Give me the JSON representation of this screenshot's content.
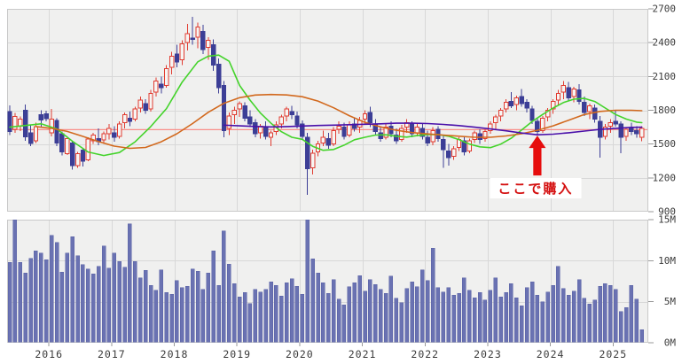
{
  "chart_data": {
    "type": "candlestick",
    "title": "",
    "description": "Monthly stock candlestick chart with volume panel, three moving averages, horizontal purchase-price line and a buy annotation",
    "price_axis": {
      "min": 900,
      "max": 2700,
      "tick_values": [
        2700,
        2400,
        2100,
        1800,
        1500,
        1200,
        900
      ],
      "tick_labels": [
        "2700",
        "2400",
        "2100",
        "1800",
        "1500",
        "1200",
        "900"
      ],
      "position": "right",
      "grid": true
    },
    "volume_axis": {
      "min": 0,
      "max": 15,
      "tick_values": [
        15,
        10,
        5,
        0
      ],
      "tick_labels": [
        "15M",
        "10M",
        "5M",
        "0M"
      ],
      "position": "right",
      "grid": true
    },
    "x_axis": {
      "year_labels": [
        "2016",
        "2017",
        "2018",
        "2019",
        "2020",
        "2021",
        "2022",
        "2023",
        "2024",
        "2025"
      ],
      "first_year_start_index": 7,
      "candles_per_year": 12,
      "grid": true
    },
    "candles_ohlc": [
      [
        1790,
        1845,
        1580,
        1610
      ],
      [
        1630,
        1775,
        1600,
        1745
      ],
      [
        1660,
        1745,
        1615,
        1720
      ],
      [
        1800,
        1850,
        1530,
        1565
      ],
      [
        1600,
        1665,
        1480,
        1505
      ],
      [
        1530,
        1690,
        1510,
        1655
      ],
      [
        1760,
        1800,
        1650,
        1712
      ],
      [
        1770,
        1795,
        1700,
        1727
      ],
      [
        1600,
        1810,
        1570,
        1720
      ],
      [
        1710,
        1730,
        1480,
        1510
      ],
      [
        1590,
        1610,
        1400,
        1430
      ],
      [
        1415,
        1565,
        1405,
        1550
      ],
      [
        1510,
        1530,
        1275,
        1310
      ],
      [
        1310,
        1430,
        1290,
        1415
      ],
      [
        1445,
        1460,
        1300,
        1350
      ],
      [
        1360,
        1560,
        1350,
        1545
      ],
      [
        1530,
        1600,
        1500,
        1580
      ],
      [
        1550,
        1640,
        1490,
        1520
      ],
      [
        1535,
        1610,
        1500,
        1590
      ],
      [
        1590,
        1680,
        1540,
        1640
      ],
      [
        1600,
        1660,
        1520,
        1560
      ],
      [
        1570,
        1700,
        1550,
        1680
      ],
      [
        1690,
        1780,
        1640,
        1760
      ],
      [
        1730,
        1790,
        1660,
        1700
      ],
      [
        1720,
        1830,
        1700,
        1810
      ],
      [
        1820,
        1920,
        1780,
        1890
      ],
      [
        1860,
        1900,
        1770,
        1800
      ],
      [
        1810,
        1980,
        1790,
        1950
      ],
      [
        1960,
        2090,
        1920,
        2060
      ],
      [
        2030,
        2100,
        1950,
        2000
      ],
      [
        2020,
        2200,
        2000,
        2170
      ],
      [
        2180,
        2320,
        2120,
        2280
      ],
      [
        2300,
        2380,
        2180,
        2230
      ],
      [
        2250,
        2420,
        2200,
        2390
      ],
      [
        2400,
        2565,
        2330,
        2480
      ],
      [
        2440,
        2630,
        2380,
        2430
      ],
      [
        2450,
        2580,
        2350,
        2540
      ],
      [
        2500,
        2560,
        2300,
        2340
      ],
      [
        2360,
        2450,
        2250,
        2420
      ],
      [
        2380,
        2430,
        2150,
        2200
      ],
      [
        2210,
        2260,
        1950,
        2000
      ],
      [
        2020,
        2060,
        1560,
        1620
      ],
      [
        1640,
        1780,
        1580,
        1750
      ],
      [
        1760,
        1830,
        1680,
        1800
      ],
      [
        1810,
        1880,
        1740,
        1860
      ],
      [
        1840,
        1870,
        1700,
        1730
      ],
      [
        1740,
        1800,
        1650,
        1680
      ],
      [
        1690,
        1720,
        1560,
        1590
      ],
      [
        1600,
        1680,
        1550,
        1660
      ],
      [
        1650,
        1700,
        1540,
        1570
      ],
      [
        1560,
        1620,
        1480,
        1600
      ],
      [
        1610,
        1700,
        1580,
        1670
      ],
      [
        1680,
        1760,
        1640,
        1740
      ],
      [
        1750,
        1830,
        1700,
        1810
      ],
      [
        1790,
        1840,
        1720,
        1760
      ],
      [
        1750,
        1790,
        1640,
        1670
      ],
      [
        1680,
        1710,
        1540,
        1570
      ],
      [
        1560,
        1600,
        1050,
        1280
      ],
      [
        1290,
        1450,
        1230,
        1420
      ],
      [
        1430,
        1530,
        1390,
        1500
      ],
      [
        1510,
        1620,
        1480,
        1560
      ],
      [
        1550,
        1600,
        1460,
        1490
      ],
      [
        1500,
        1650,
        1480,
        1620
      ],
      [
        1630,
        1700,
        1590,
        1660
      ],
      [
        1650,
        1690,
        1540,
        1570
      ],
      [
        1580,
        1700,
        1560,
        1670
      ],
      [
        1680,
        1730,
        1610,
        1640
      ],
      [
        1650,
        1740,
        1600,
        1710
      ],
      [
        1720,
        1800,
        1680,
        1770
      ],
      [
        1780,
        1830,
        1650,
        1690
      ],
      [
        1680,
        1720,
        1580,
        1610
      ],
      [
        1600,
        1660,
        1520,
        1550
      ],
      [
        1560,
        1680,
        1540,
        1650
      ],
      [
        1660,
        1700,
        1560,
        1590
      ],
      [
        1580,
        1640,
        1500,
        1530
      ],
      [
        1540,
        1670,
        1520,
        1640
      ],
      [
        1650,
        1720,
        1600,
        1690
      ],
      [
        1680,
        1700,
        1560,
        1590
      ],
      [
        1600,
        1680,
        1570,
        1650
      ],
      [
        1640,
        1680,
        1540,
        1570
      ],
      [
        1560,
        1620,
        1480,
        1510
      ],
      [
        1520,
        1650,
        1490,
        1620
      ],
      [
        1630,
        1660,
        1520,
        1550
      ],
      [
        1540,
        1580,
        1290,
        1450
      ],
      [
        1440,
        1500,
        1310,
        1380
      ],
      [
        1390,
        1480,
        1360,
        1460
      ],
      [
        1470,
        1560,
        1440,
        1540
      ],
      [
        1530,
        1570,
        1400,
        1430
      ],
      [
        1440,
        1550,
        1420,
        1530
      ],
      [
        1540,
        1620,
        1510,
        1600
      ],
      [
        1590,
        1630,
        1500,
        1540
      ],
      [
        1550,
        1630,
        1520,
        1610
      ],
      [
        1620,
        1700,
        1590,
        1680
      ],
      [
        1690,
        1760,
        1630,
        1740
      ],
      [
        1750,
        1820,
        1700,
        1800
      ],
      [
        1810,
        1900,
        1780,
        1870
      ],
      [
        1880,
        1960,
        1820,
        1840
      ],
      [
        1850,
        1930,
        1800,
        1910
      ],
      [
        1920,
        1990,
        1830,
        1860
      ],
      [
        1870,
        1900,
        1780,
        1820
      ],
      [
        1810,
        1840,
        1680,
        1710
      ],
      [
        1700,
        1730,
        1575,
        1610
      ],
      [
        1620,
        1750,
        1600,
        1730
      ],
      [
        1740,
        1820,
        1700,
        1800
      ],
      [
        1810,
        1900,
        1770,
        1880
      ],
      [
        1890,
        1980,
        1840,
        1950
      ],
      [
        1960,
        2060,
        1900,
        2020
      ],
      [
        2000,
        2050,
        1880,
        1910
      ],
      [
        1920,
        2010,
        1870,
        1990
      ],
      [
        1980,
        2030,
        1850,
        1880
      ],
      [
        1870,
        1920,
        1750,
        1780
      ],
      [
        1790,
        1860,
        1720,
        1840
      ],
      [
        1820,
        1850,
        1690,
        1720
      ],
      [
        1700,
        1750,
        1380,
        1560
      ],
      [
        1570,
        1680,
        1540,
        1650
      ],
      [
        1660,
        1720,
        1600,
        1690
      ],
      [
        1700,
        1795,
        1655,
        1680
      ],
      [
        1680,
        1700,
        1420,
        1560
      ],
      [
        1570,
        1650,
        1530,
        1630
      ],
      [
        1640,
        1690,
        1580,
        1610
      ],
      [
        1620,
        1660,
        1555,
        1590
      ],
      [
        1560,
        1660,
        1525,
        1640
      ]
    ],
    "volumes_m": [
      9.8,
      15.2,
      9.8,
      8.5,
      10.3,
      11.2,
      10.9,
      10.1,
      13.1,
      12.2,
      8.6,
      10.9,
      12.9,
      10.6,
      9.5,
      9.0,
      8.4,
      9.3,
      11.8,
      9.1,
      10.9,
      9.9,
      9.2,
      14.5,
      9.9,
      7.9,
      8.8,
      7.0,
      6.4,
      8.9,
      6.1,
      5.9,
      7.6,
      6.7,
      6.9,
      9.0,
      8.7,
      6.5,
      8.5,
      11.2,
      7.0,
      13.6,
      9.6,
      7.2,
      5.6,
      6.1,
      4.8,
      6.5,
      6.2,
      6.5,
      7.4,
      7.0,
      5.7,
      7.3,
      7.8,
      6.9,
      5.9,
      15.3,
      10.2,
      8.5,
      7.3,
      6.0,
      7.7,
      5.3,
      4.6,
      6.8,
      7.3,
      8.2,
      6.3,
      7.7,
      7.1,
      6.5,
      6.0,
      8.1,
      5.4,
      4.9,
      6.6,
      7.4,
      6.8,
      8.9,
      7.6,
      11.5,
      6.7,
      6.2,
      6.7,
      5.8,
      6.0,
      7.9,
      6.4,
      5.5,
      6.1,
      5.2,
      6.4,
      7.9,
      5.6,
      6.1,
      7.2,
      5.5,
      4.5,
      6.7,
      7.4,
      5.8,
      5.0,
      6.2,
      7.0,
      9.3,
      6.6,
      5.8,
      6.3,
      7.7,
      5.4,
      4.7,
      5.2,
      6.9,
      7.2,
      7.0,
      6.5,
      3.8,
      4.3,
      7.0,
      5.3,
      1.6
    ],
    "moving_averages": [
      {
        "name": "short-term-ma",
        "color": "#44d32b",
        "points": [
          [
            0,
            1650
          ],
          [
            3,
            1665
          ],
          [
            6,
            1680
          ],
          [
            9,
            1635
          ],
          [
            12,
            1525
          ],
          [
            15,
            1430
          ],
          [
            18,
            1398
          ],
          [
            21,
            1425
          ],
          [
            24,
            1520
          ],
          [
            27,
            1655
          ],
          [
            30,
            1815
          ],
          [
            33,
            2050
          ],
          [
            36,
            2230
          ],
          [
            38,
            2280
          ],
          [
            40,
            2290
          ],
          [
            42,
            2235
          ],
          [
            44,
            2020
          ],
          [
            46,
            1890
          ],
          [
            48,
            1775
          ],
          [
            50,
            1685
          ],
          [
            52,
            1610
          ],
          [
            54,
            1560
          ],
          [
            56,
            1542
          ],
          [
            58,
            1480
          ],
          [
            60,
            1445
          ],
          [
            62,
            1452
          ],
          [
            64,
            1490
          ],
          [
            66,
            1538
          ],
          [
            68,
            1560
          ],
          [
            70,
            1580
          ],
          [
            72,
            1582
          ],
          [
            74,
            1570
          ],
          [
            76,
            1562
          ],
          [
            78,
            1575
          ],
          [
            80,
            1585
          ],
          [
            82,
            1585
          ],
          [
            84,
            1570
          ],
          [
            86,
            1540
          ],
          [
            88,
            1500
          ],
          [
            90,
            1475
          ],
          [
            92,
            1468
          ],
          [
            94,
            1500
          ],
          [
            96,
            1552
          ],
          [
            98,
            1625
          ],
          [
            100,
            1700
          ],
          [
            102,
            1762
          ],
          [
            104,
            1820
          ],
          [
            106,
            1868
          ],
          [
            108,
            1898
          ],
          [
            110,
            1905
          ],
          [
            112,
            1878
          ],
          [
            114,
            1820
          ],
          [
            116,
            1762
          ],
          [
            118,
            1722
          ],
          [
            120,
            1695
          ],
          [
            121,
            1690
          ]
        ]
      },
      {
        "name": "mid-term-ma",
        "color": "#d2691e",
        "points": [
          [
            5,
            1655
          ],
          [
            8,
            1640
          ],
          [
            11,
            1612
          ],
          [
            14,
            1568
          ],
          [
            17,
            1522
          ],
          [
            20,
            1482
          ],
          [
            23,
            1462
          ],
          [
            26,
            1470
          ],
          [
            29,
            1520
          ],
          [
            32,
            1592
          ],
          [
            35,
            1682
          ],
          [
            38,
            1782
          ],
          [
            41,
            1862
          ],
          [
            44,
            1912
          ],
          [
            47,
            1935
          ],
          [
            50,
            1940
          ],
          [
            53,
            1936
          ],
          [
            56,
            1920
          ],
          [
            59,
            1882
          ],
          [
            62,
            1822
          ],
          [
            65,
            1752
          ],
          [
            68,
            1692
          ],
          [
            71,
            1652
          ],
          [
            74,
            1622
          ],
          [
            77,
            1602
          ],
          [
            80,
            1590
          ],
          [
            83,
            1580
          ],
          [
            86,
            1570
          ],
          [
            89,
            1560
          ],
          [
            92,
            1560
          ],
          [
            95,
            1572
          ],
          [
            98,
            1592
          ],
          [
            101,
            1622
          ],
          [
            104,
            1662
          ],
          [
            107,
            1712
          ],
          [
            110,
            1762
          ],
          [
            113,
            1790
          ],
          [
            116,
            1800
          ],
          [
            119,
            1800
          ],
          [
            121,
            1796
          ]
        ]
      },
      {
        "name": "long-term-ma",
        "color": "#4a10aa",
        "points": [
          [
            41,
            1668
          ],
          [
            44,
            1662
          ],
          [
            47,
            1656
          ],
          [
            50,
            1652
          ],
          [
            53,
            1655
          ],
          [
            56,
            1660
          ],
          [
            59,
            1665
          ],
          [
            62,
            1668
          ],
          [
            65,
            1672
          ],
          [
            68,
            1676
          ],
          [
            71,
            1680
          ],
          [
            74,
            1685
          ],
          [
            77,
            1685
          ],
          [
            80,
            1682
          ],
          [
            83,
            1674
          ],
          [
            86,
            1664
          ],
          [
            89,
            1650
          ],
          [
            92,
            1634
          ],
          [
            95,
            1618
          ],
          [
            98,
            1598
          ],
          [
            101,
            1582
          ],
          [
            104,
            1588
          ],
          [
            107,
            1600
          ],
          [
            110,
            1615
          ],
          [
            113,
            1630
          ],
          [
            116,
            1640
          ],
          [
            119,
            1648
          ],
          [
            121,
            1650
          ]
        ]
      }
    ],
    "horizontal_line": {
      "price": 1628,
      "color": "#f98f8a"
    },
    "annotation": {
      "text": "ここで購入",
      "text_color": "#d40f0f",
      "arrow_color": "#e60d0d",
      "candle_index": 101,
      "points_at_price": 1575
    },
    "colors": {
      "up_candle": "#e13b30",
      "up_candle_fill": "#f7f5f3",
      "down_candle": "#3c3e96",
      "volume_bar": "#6a72b2",
      "volume_bar_edge": "#5a62a5",
      "plot_bg": "#f0f0ef",
      "grid": "#d8d8d8",
      "panel_border": "#c9c9c9",
      "tick": "#999999",
      "axis_text": "#3a3a3a"
    }
  }
}
